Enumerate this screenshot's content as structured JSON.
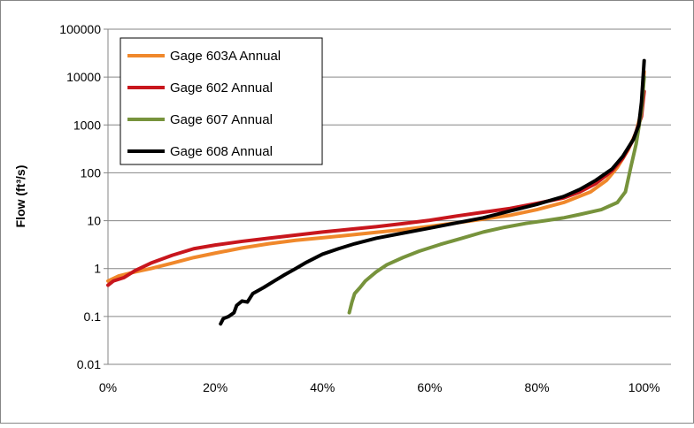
{
  "chart_data": {
    "type": "line",
    "title": "",
    "xlabel": "",
    "ylabel": "Flow (ft³/s)",
    "y_scale": "log",
    "ylim": [
      0.01,
      100000
    ],
    "xlim": [
      0,
      1.05
    ],
    "y_ticks": [
      {
        "value": 0.01,
        "label": "0.01"
      },
      {
        "value": 0.1,
        "label": "0.1"
      },
      {
        "value": 1,
        "label": "1"
      },
      {
        "value": 10,
        "label": "10"
      },
      {
        "value": 100,
        "label": "100"
      },
      {
        "value": 1000,
        "label": "1000"
      },
      {
        "value": 10000,
        "label": "10000"
      },
      {
        "value": 100000,
        "label": "100000"
      }
    ],
    "x_ticks": [
      {
        "value": 0,
        "label": "0%"
      },
      {
        "value": 0.2,
        "label": "20%"
      },
      {
        "value": 0.4,
        "label": "40%"
      },
      {
        "value": 0.6,
        "label": "60%"
      },
      {
        "value": 0.8,
        "label": "80%"
      },
      {
        "value": 1.0,
        "label": "100%"
      }
    ],
    "grid": {
      "horizontal": true,
      "vertical": false
    },
    "legend_position": "top-left",
    "series": [
      {
        "name": "Gage 603A Annual",
        "color": "#f0882b",
        "points": [
          [
            0.0,
            0.55
          ],
          [
            0.02,
            0.7
          ],
          [
            0.05,
            0.85
          ],
          [
            0.08,
            1.0
          ],
          [
            0.12,
            1.3
          ],
          [
            0.16,
            1.7
          ],
          [
            0.2,
            2.1
          ],
          [
            0.25,
            2.7
          ],
          [
            0.3,
            3.3
          ],
          [
            0.35,
            3.9
          ],
          [
            0.4,
            4.4
          ],
          [
            0.45,
            5.0
          ],
          [
            0.5,
            5.7
          ],
          [
            0.55,
            6.5
          ],
          [
            0.6,
            7.6
          ],
          [
            0.65,
            9.0
          ],
          [
            0.7,
            10.8
          ],
          [
            0.75,
            13.0
          ],
          [
            0.8,
            17.0
          ],
          [
            0.85,
            24.0
          ],
          [
            0.9,
            40.0
          ],
          [
            0.93,
            70.0
          ],
          [
            0.95,
            130.0
          ],
          [
            0.97,
            300.0
          ],
          [
            0.985,
            700.0
          ],
          [
            0.995,
            2000.0
          ],
          [
            1.0,
            13000.0
          ]
        ]
      },
      {
        "name": "Gage 602 Annual",
        "color": "#c8161d",
        "points": [
          [
            0.0,
            0.45
          ],
          [
            0.01,
            0.55
          ],
          [
            0.03,
            0.65
          ],
          [
            0.05,
            0.9
          ],
          [
            0.08,
            1.3
          ],
          [
            0.12,
            1.9
          ],
          [
            0.16,
            2.6
          ],
          [
            0.2,
            3.1
          ],
          [
            0.25,
            3.7
          ],
          [
            0.3,
            4.3
          ],
          [
            0.35,
            5.0
          ],
          [
            0.4,
            5.8
          ],
          [
            0.45,
            6.6
          ],
          [
            0.5,
            7.5
          ],
          [
            0.55,
            8.7
          ],
          [
            0.6,
            10.2
          ],
          [
            0.65,
            12.5
          ],
          [
            0.7,
            15.0
          ],
          [
            0.75,
            18.0
          ],
          [
            0.8,
            23.0
          ],
          [
            0.85,
            30.0
          ],
          [
            0.88,
            40.0
          ],
          [
            0.91,
            60.0
          ],
          [
            0.94,
            110.0
          ],
          [
            0.96,
            200.0
          ],
          [
            0.98,
            500.0
          ],
          [
            0.995,
            1500.0
          ],
          [
            1.0,
            5000.0
          ]
        ]
      },
      {
        "name": "Gage 607 Annual",
        "color": "#77933c",
        "points": [
          [
            0.45,
            0.12
          ],
          [
            0.455,
            0.2
          ],
          [
            0.46,
            0.3
          ],
          [
            0.47,
            0.4
          ],
          [
            0.48,
            0.55
          ],
          [
            0.5,
            0.85
          ],
          [
            0.52,
            1.2
          ],
          [
            0.55,
            1.7
          ],
          [
            0.58,
            2.3
          ],
          [
            0.62,
            3.2
          ],
          [
            0.66,
            4.3
          ],
          [
            0.7,
            5.8
          ],
          [
            0.74,
            7.3
          ],
          [
            0.78,
            8.8
          ],
          [
            0.82,
            10.2
          ],
          [
            0.85,
            11.5
          ],
          [
            0.88,
            13.5
          ],
          [
            0.92,
            17.0
          ],
          [
            0.95,
            24.0
          ],
          [
            0.965,
            40.0
          ],
          [
            0.975,
            130.0
          ],
          [
            0.985,
            400.0
          ],
          [
            0.995,
            2000.0
          ],
          [
            1.0,
            10000.0
          ]
        ]
      },
      {
        "name": "Gage 608 Annual",
        "color": "#000000",
        "points": [
          [
            0.21,
            0.07
          ],
          [
            0.215,
            0.09
          ],
          [
            0.225,
            0.1
          ],
          [
            0.235,
            0.12
          ],
          [
            0.24,
            0.17
          ],
          [
            0.25,
            0.21
          ],
          [
            0.26,
            0.2
          ],
          [
            0.27,
            0.3
          ],
          [
            0.29,
            0.4
          ],
          [
            0.31,
            0.55
          ],
          [
            0.33,
            0.75
          ],
          [
            0.35,
            1.0
          ],
          [
            0.37,
            1.35
          ],
          [
            0.4,
            2.0
          ],
          [
            0.43,
            2.6
          ],
          [
            0.46,
            3.3
          ],
          [
            0.5,
            4.3
          ],
          [
            0.55,
            5.5
          ],
          [
            0.6,
            7.0
          ],
          [
            0.65,
            9.0
          ],
          [
            0.7,
            11.5
          ],
          [
            0.75,
            16.0
          ],
          [
            0.8,
            22.0
          ],
          [
            0.85,
            32.0
          ],
          [
            0.88,
            45.0
          ],
          [
            0.91,
            70.0
          ],
          [
            0.94,
            120.0
          ],
          [
            0.96,
            220.0
          ],
          [
            0.98,
            500.0
          ],
          [
            0.99,
            1000.0
          ],
          [
            0.995,
            3000.0
          ],
          [
            1.0,
            22000.0
          ]
        ]
      }
    ]
  }
}
